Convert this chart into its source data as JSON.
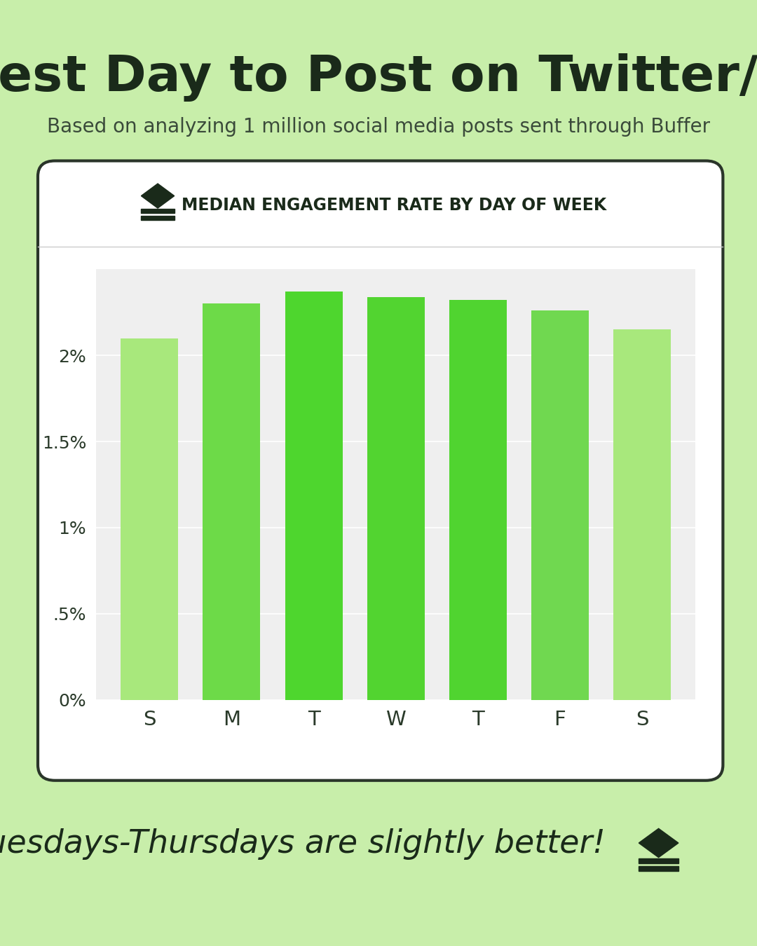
{
  "title": "Best Day to Post on Twitter/X",
  "subtitle": "Based on analyzing 1 million social media posts sent through Buffer",
  "chart_title": "MEDIAN ENGAGEMENT RATE BY DAY OF WEEK",
  "categories": [
    "S",
    "M",
    "T",
    "W",
    "T",
    "F",
    "S"
  ],
  "values": [
    0.021,
    0.023,
    0.0237,
    0.0234,
    0.0232,
    0.0226,
    0.0215
  ],
  "bar_colors": [
    "#a8e87c",
    "#6dda48",
    "#4ed62e",
    "#52d430",
    "#50d430",
    "#70d850",
    "#a8e87c"
  ],
  "background_color": "#c8eeaa",
  "card_color": "white",
  "card_border_color": "#2a352a",
  "chart_bg_color": "#efefef",
  "title_color": "#1a2a1a",
  "subtitle_color": "#3a4a3a",
  "axis_label_color": "#2a3a2a",
  "annotation_text": "Tuesdays-Thursdays are slightly better!",
  "annotation_color": "#1a2a1a",
  "ylim": [
    0,
    0.025
  ],
  "yticks": [
    0,
    0.005,
    0.01,
    0.015,
    0.02
  ],
  "ytick_labels": [
    "0%",
    ".5%",
    "1%",
    "1.5%",
    "2%"
  ],
  "title_fontsize": 52,
  "subtitle_fontsize": 20,
  "chart_title_fontsize": 17,
  "annotation_fontsize": 33
}
